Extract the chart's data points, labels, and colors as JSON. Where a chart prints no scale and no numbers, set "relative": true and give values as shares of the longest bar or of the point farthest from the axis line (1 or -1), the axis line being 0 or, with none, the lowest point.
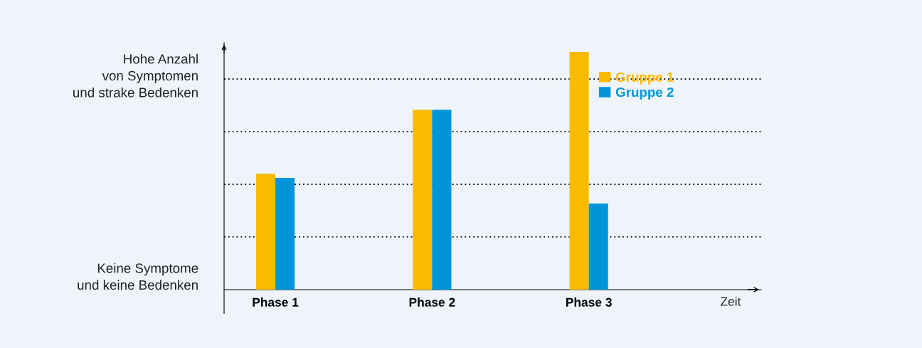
{
  "chart_data": {
    "type": "bar",
    "relative": true,
    "categories": [
      "Phase 1",
      "Phase 2",
      "Phase 3"
    ],
    "xlabel": "Zeit",
    "series": [
      {
        "name": "Gruppe 1",
        "color": "#fbb900",
        "values": [
          0.488,
          0.757,
          1
        ]
      },
      {
        "name": "Gruppe 2",
        "color": "#0095d8",
        "values": [
          0.47,
          0.757,
          0.362
        ]
      }
    ],
    "annotations": [
      "Hohe Anzahl\nvon Symptomen\nund strake Bedenken",
      "Keine Symptome\nund keine Bedenken"
    ],
    "ref_lines": [
      {
        "axis": "y",
        "value": 0.222,
        "color": "#1a1a1a",
        "line_style": "dotted"
      },
      {
        "axis": "y",
        "value": 0.443,
        "color": "#1a1a1a",
        "line_style": "dotted"
      },
      {
        "axis": "y",
        "value": 0.665,
        "color": "#1a1a1a",
        "line_style": "dotted"
      },
      {
        "axis": "y",
        "value": 0.886,
        "color": "#1a1a1a",
        "line_style": "dotted"
      }
    ],
    "legend": "top right",
    "grid": false
  }
}
